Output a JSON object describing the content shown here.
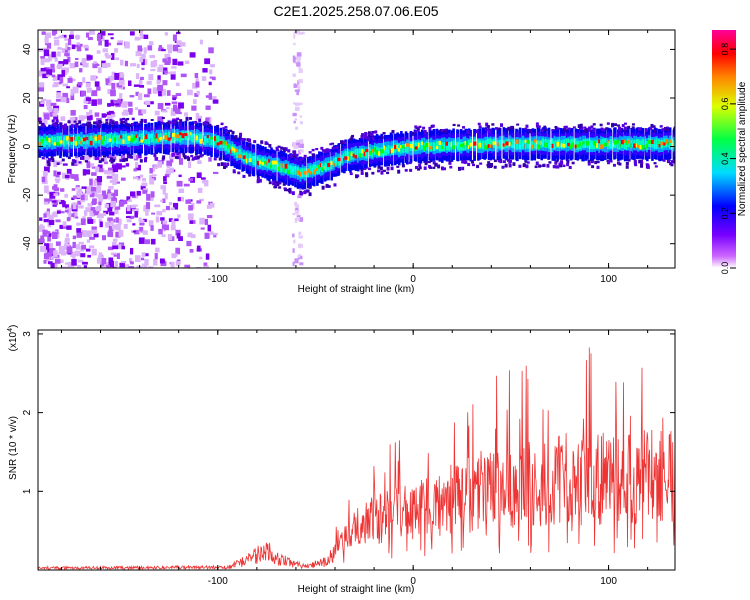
{
  "title": "C2E1.2025.258.07.06.E05",
  "chart_data": [
    {
      "type": "heatmap",
      "title": "C2E1.2025.258.07.06.E05",
      "xlabel": "Height of straight line (km)",
      "ylabel": "Frequency (Hz)",
      "xlim": [
        -192,
        134
      ],
      "ylim": [
        -50,
        48
      ],
      "xticks": [
        -100,
        0,
        100
      ],
      "yticks": [
        -40,
        -20,
        0,
        20,
        40
      ],
      "colorbar": {
        "label": "Normalized spectral amplitude",
        "range": [
          0.0,
          0.87
        ],
        "ticks": [
          0.0,
          0.2,
          0.4,
          0.6,
          0.8
        ],
        "colormap": [
          "#ffffff",
          "#8800ff",
          "#0000ff",
          "#00ffff",
          "#00ff00",
          "#ffff00",
          "#ff8800",
          "#ff0000",
          "#ff00aa"
        ]
      },
      "ridge": [
        {
          "x": -192,
          "y": 2
        },
        {
          "x": -150,
          "y": 3
        },
        {
          "x": -115,
          "y": 4
        },
        {
          "x": -100,
          "y": 2
        },
        {
          "x": -85,
          "y": -5
        },
        {
          "x": -70,
          "y": -8
        },
        {
          "x": -58,
          "y": -11
        },
        {
          "x": -45,
          "y": -8
        },
        {
          "x": -35,
          "y": -4
        },
        {
          "x": -20,
          "y": -2
        },
        {
          "x": 0,
          "y": 0
        },
        {
          "x": 40,
          "y": 1
        },
        {
          "x": 100,
          "y": 1
        },
        {
          "x": 134,
          "y": 1
        }
      ]
    },
    {
      "type": "line",
      "xlabel": "Height of straight line (km)",
      "ylabel": "SNR (10 * v/v)",
      "yscale_label": "(x10",
      "yscale_exp": "4",
      "xlim": [
        -192,
        134
      ],
      "ylim": [
        0,
        3.05
      ],
      "xticks": [
        -100,
        0,
        100
      ],
      "yticks": [
        1,
        2,
        3
      ],
      "color": "#ee3333",
      "envelope": [
        {
          "x": -192,
          "y": 0.03
        },
        {
          "x": -95,
          "y": 0.04
        },
        {
          "x": -82,
          "y": 0.18
        },
        {
          "x": -75,
          "y": 0.3
        },
        {
          "x": -68,
          "y": 0.15
        },
        {
          "x": -55,
          "y": 0.05
        },
        {
          "x": -45,
          "y": 0.12
        },
        {
          "x": -35,
          "y": 0.45
        },
        {
          "x": -25,
          "y": 0.75
        },
        {
          "x": -10,
          "y": 0.85
        },
        {
          "x": 10,
          "y": 0.98
        },
        {
          "x": 25,
          "y": 1.15
        },
        {
          "x": 45,
          "y": 1.32
        },
        {
          "x": 80,
          "y": 1.42
        },
        {
          "x": 134,
          "y": 1.45
        }
      ]
    }
  ]
}
